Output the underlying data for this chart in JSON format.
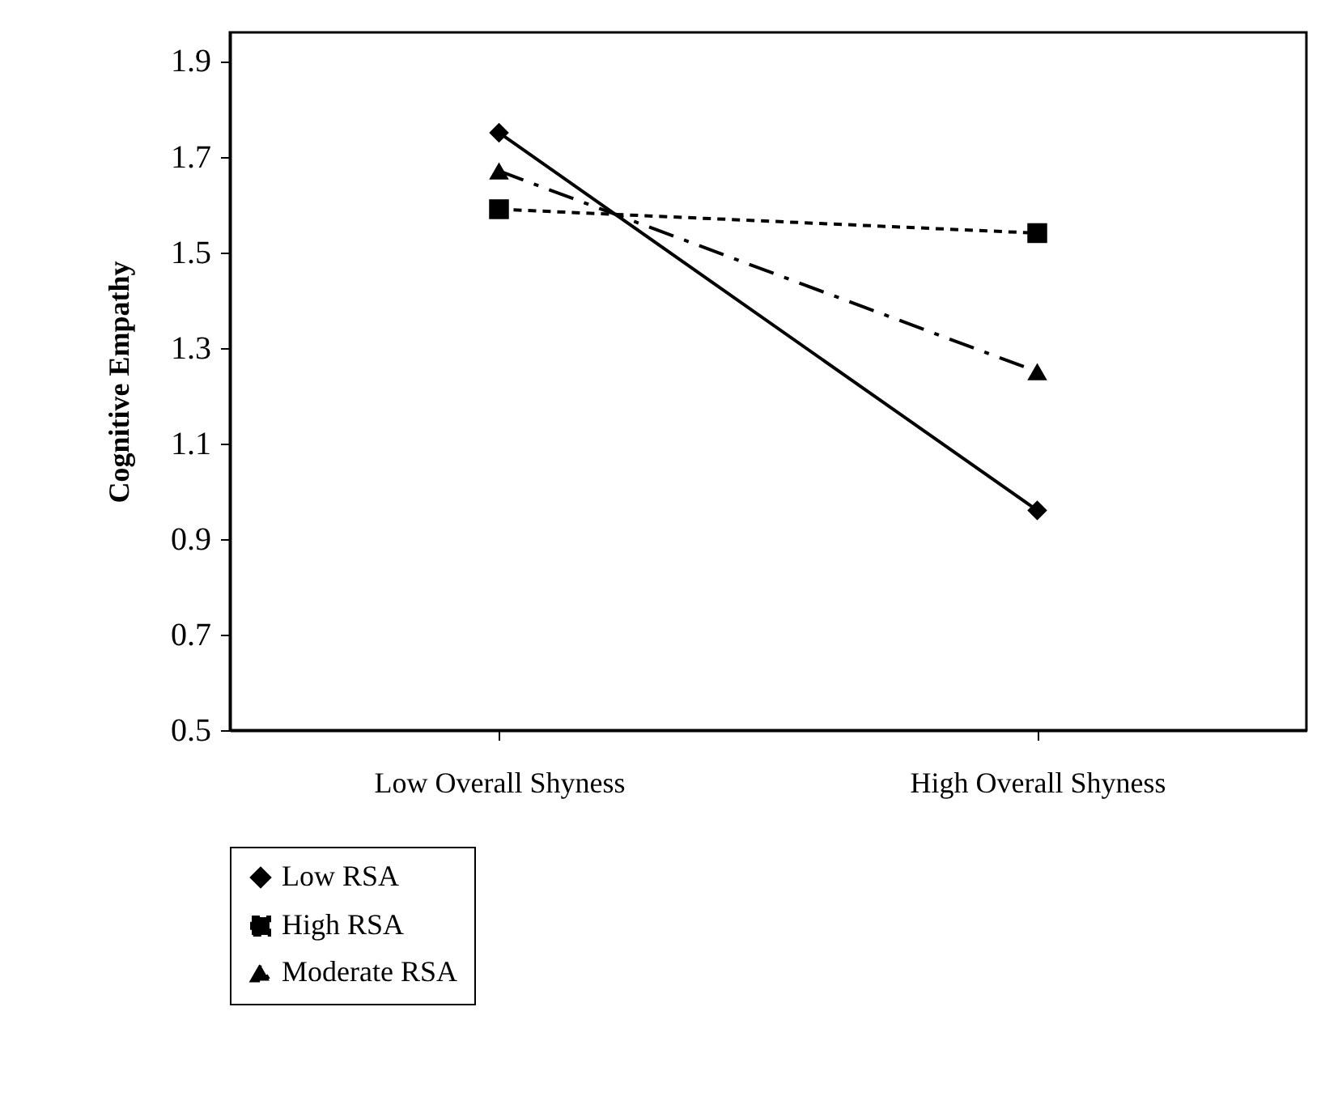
{
  "chart_data": {
    "type": "line",
    "ylabel": "Cognitive Empathy",
    "categories": [
      "Low Overall Shyness",
      "High Overall Shyness"
    ],
    "series": [
      {
        "name": "Low RSA",
        "color": "#000000",
        "values": [
          1.75,
          0.96
        ],
        "marker": "diamond",
        "line_style": "solid"
      },
      {
        "name": "High RSA",
        "color": "#000000",
        "values": [
          1.59,
          1.54
        ],
        "marker": "square",
        "line_style": "dashed"
      },
      {
        "name": "Moderate RSA",
        "color": "#000000",
        "values": [
          1.67,
          1.25
        ],
        "marker": "triangle",
        "line_style": "dashdot"
      }
    ],
    "ylim": [
      0.5,
      1.96
    ],
    "yticks": [
      0.5,
      0.7,
      0.9,
      1.1,
      1.3,
      1.5,
      1.7,
      1.9
    ],
    "grid": false,
    "legend": "bottom"
  }
}
